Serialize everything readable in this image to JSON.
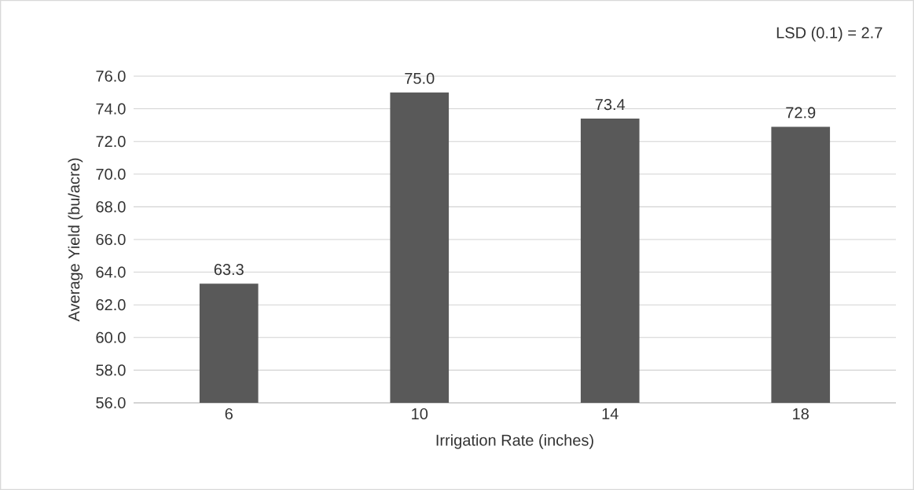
{
  "chart_data": {
    "type": "bar",
    "xlabel": "Irrigation Rate (inches)",
    "ylabel": "Average Yield (bu/acre)",
    "categories": [
      "6",
      "10",
      "14",
      "18"
    ],
    "values": [
      63.3,
      75.0,
      73.4,
      72.9
    ],
    "color": "#595959",
    "value_labels": [
      "63.3",
      "75.0",
      "73.4",
      "72.9"
    ],
    "ylim": [
      56,
      76
    ],
    "yticks": [
      {
        "value": 56,
        "label": "56.0"
      },
      {
        "value": 58,
        "label": "58.0"
      },
      {
        "value": 60,
        "label": "60.0"
      },
      {
        "value": 62,
        "label": "62.0"
      },
      {
        "value": 64,
        "label": "64.0"
      },
      {
        "value": 66,
        "label": "66.0"
      },
      {
        "value": 68,
        "label": "68.0"
      },
      {
        "value": 70,
        "label": "70.0"
      },
      {
        "value": 72,
        "label": "72.0"
      },
      {
        "value": 74,
        "label": "74.0"
      },
      {
        "value": 76,
        "label": "76.0"
      }
    ],
    "grid": "y",
    "annotations": [
      "LSD (0.1) = 2.7"
    ]
  }
}
